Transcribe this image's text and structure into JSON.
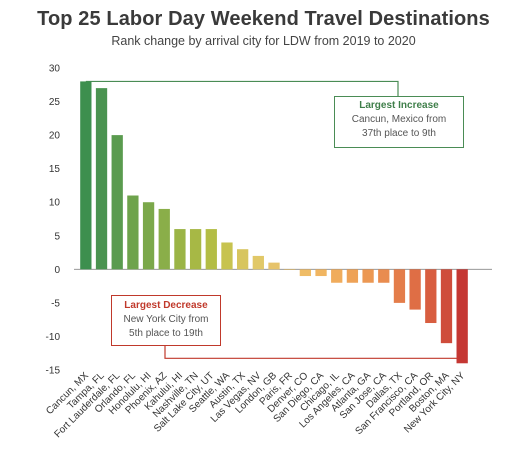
{
  "title": "Top 25 Labor Day Weekend Travel Destinations",
  "subtitle": "Rank change by arrival city for LDW from 2019 to 2020",
  "annotations": {
    "increase": {
      "title": "Largest Increase",
      "line1": "Cancun, Mexico from",
      "line2": "37th place to 9th",
      "color": "#4a8c55"
    },
    "decrease": {
      "title": "Largest Decrease",
      "line1": "New York City from",
      "line2": "5th place to 19th",
      "color": "#c0392b"
    }
  },
  "chart_data": {
    "type": "bar",
    "title": "Top 25 Labor Day Weekend Travel Destinations",
    "subtitle": "Rank change by arrival city for LDW from 2019 to 2020",
    "xlabel": "",
    "ylabel": "",
    "ylim": [
      -15,
      30
    ],
    "yticks": [
      30,
      25,
      20,
      15,
      10,
      5,
      0,
      -5,
      -10,
      -15
    ],
    "grid": false,
    "legend": "none",
    "categories": [
      "Cancun, MX",
      "Tampa, FL",
      "Fort Lauderdale, FL",
      "Orlando, FL",
      "Honolulu, HI",
      "Phoenix, AZ",
      "Kahului, HI",
      "Nashville, TN",
      "Salt Lake City, UT",
      "Seattle, WA",
      "Austin, TX",
      "Las Vegas, NV",
      "London, GB",
      "Paris, FR",
      "Denver, CO",
      "San Diego, CA",
      "Chicago, IL",
      "Los Angeles, CA",
      "Atlanta, GA",
      "San Jose, CA",
      "Dallas, TX",
      "San Francisco, CA",
      "Portland, OR",
      "Boston, MA",
      "New York City, NY"
    ],
    "values": [
      28,
      27,
      20,
      11,
      10,
      9,
      6,
      6,
      6,
      4,
      3,
      2,
      1,
      0,
      -1,
      -1,
      -2,
      -2,
      -2,
      -2,
      -5,
      -6,
      -8,
      -11,
      -14
    ],
    "colors": [
      "#3d8f4e",
      "#4a9350",
      "#5a9b4f",
      "#6ea34c",
      "#7ba84a",
      "#8aae49",
      "#9bb446",
      "#a7b845",
      "#b3bd45",
      "#c7c34f",
      "#d7c55e",
      "#e1c868",
      "#e6c36b",
      "#ebc069",
      "#efbc66",
      "#f0b561",
      "#f0ac5c",
      "#eea257",
      "#ec9853",
      "#e98c4f",
      "#e47d4a",
      "#df6e45",
      "#d85e40",
      "#cf4c3b",
      "#c53733"
    ]
  }
}
